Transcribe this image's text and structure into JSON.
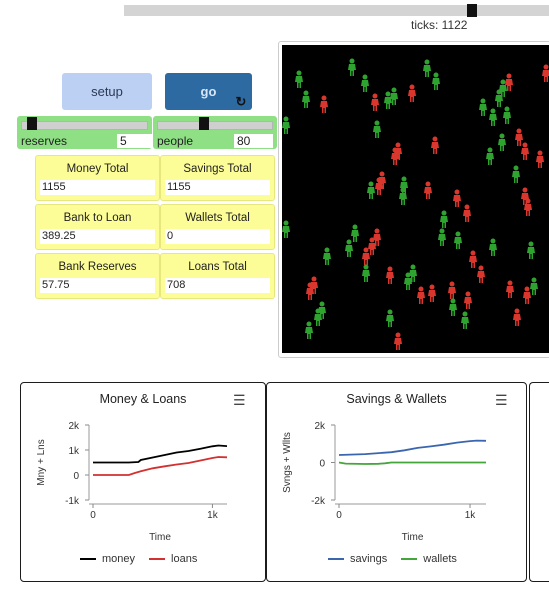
{
  "speed": {
    "ticks_label": "ticks: 1122"
  },
  "buttons": {
    "setup": "setup",
    "go": "go",
    "go_icon": "reload-icon"
  },
  "sliders": {
    "reserves": {
      "label": "reserves",
      "value": "5"
    },
    "people": {
      "label": "people",
      "value": "80"
    }
  },
  "monitors": [
    {
      "label": "Money Total",
      "value": "1155"
    },
    {
      "label": "Savings Total",
      "value": "1155"
    },
    {
      "label": "Bank to Loan",
      "value": "389.25"
    },
    {
      "label": "Wallets Total",
      "value": "0"
    },
    {
      "label": "Bank Reserves",
      "value": "57.75"
    },
    {
      "label": "Loans Total",
      "value": "708"
    }
  ],
  "colors": {
    "world_bg": "#000000",
    "agent_green": "#2fa32f",
    "agent_red": "#d9362d",
    "money": "#000000",
    "loans": "#d33030",
    "savings": "#3a66b0",
    "wallets": "#43a53a"
  },
  "plots": {
    "money_loans": {
      "title": "Money & Loans",
      "menu_icon": "hamburger-menu-icon",
      "ylabel": "Mny + Lns",
      "xlabel": "Time",
      "yticks": [
        "2k",
        "1k",
        "0",
        "-1k"
      ],
      "xticks": [
        "0",
        "1k"
      ],
      "legend": [
        "money",
        "loans"
      ]
    },
    "savings_wallets": {
      "title": "Savings & Wallets",
      "menu_icon": "hamburger-menu-icon",
      "ylabel": "Svngs + Wllts",
      "xlabel": "Time",
      "yticks": [
        "2k",
        "0",
        "-2k"
      ],
      "xticks": [
        "0",
        "1k"
      ],
      "legend": [
        "savings",
        "wallets"
      ]
    }
  },
  "chart_data": [
    {
      "type": "line",
      "title": "Money & Loans",
      "xlabel": "Time",
      "ylabel": "Mny + Lns",
      "xlim": [
        0,
        1122
      ],
      "ylim": [
        -1000,
        2000
      ],
      "series": [
        {
          "name": "money",
          "x": [
            0,
            300,
            380,
            400,
            500,
            600,
            700,
            800,
            900,
            1000,
            1050,
            1122
          ],
          "y": [
            500,
            500,
            520,
            600,
            700,
            800,
            900,
            960,
            1050,
            1150,
            1180,
            1155
          ]
        },
        {
          "name": "loans",
          "x": [
            0,
            300,
            350,
            400,
            500,
            600,
            700,
            800,
            900,
            1000,
            1050,
            1122
          ],
          "y": [
            0,
            0,
            80,
            150,
            270,
            350,
            420,
            480,
            580,
            680,
            720,
            708
          ]
        }
      ]
    },
    {
      "type": "line",
      "title": "Savings & Wallets",
      "xlabel": "Time",
      "ylabel": "Svngs + Wllts",
      "xlim": [
        0,
        1122
      ],
      "ylim": [
        -2000,
        2000
      ],
      "series": [
        {
          "name": "savings",
          "x": [
            0,
            200,
            400,
            500,
            600,
            700,
            800,
            900,
            1000,
            1050,
            1122
          ],
          "y": [
            400,
            450,
            550,
            650,
            780,
            860,
            950,
            1060,
            1140,
            1170,
            1155
          ]
        },
        {
          "name": "wallets",
          "x": [
            0,
            50,
            200,
            300,
            350,
            400,
            1122
          ],
          "y": [
            0,
            -60,
            -80,
            -70,
            -40,
            0,
            0
          ]
        }
      ]
    }
  ],
  "agents": [
    {
      "x": 17,
      "y": 34,
      "c": "g"
    },
    {
      "x": 24,
      "y": 54,
      "c": "g"
    },
    {
      "x": 70,
      "y": 22,
      "c": "g"
    },
    {
      "x": 83,
      "y": 38,
      "c": "g"
    },
    {
      "x": 145,
      "y": 23,
      "c": "g"
    },
    {
      "x": 154,
      "y": 36,
      "c": "g"
    },
    {
      "x": 264,
      "y": 28,
      "c": "r"
    },
    {
      "x": 42,
      "y": 59,
      "c": "r"
    },
    {
      "x": 93,
      "y": 57,
      "c": "r"
    },
    {
      "x": 106,
      "y": 55,
      "c": "g"
    },
    {
      "x": 112,
      "y": 51,
      "c": "g"
    },
    {
      "x": 130,
      "y": 48,
      "c": "r"
    },
    {
      "x": 201,
      "y": 62,
      "c": "g"
    },
    {
      "x": 217,
      "y": 53,
      "c": "g"
    },
    {
      "x": 221,
      "y": 43,
      "c": "g"
    },
    {
      "x": 227,
      "y": 37,
      "c": "r"
    },
    {
      "x": 211,
      "y": 72,
      "c": "g"
    },
    {
      "x": 225,
      "y": 70,
      "c": "g"
    },
    {
      "x": 4,
      "y": 80,
      "c": "g"
    },
    {
      "x": 95,
      "y": 84,
      "c": "g"
    },
    {
      "x": 153,
      "y": 100,
      "c": "r"
    },
    {
      "x": 113,
      "y": 111,
      "c": "r"
    },
    {
      "x": 116,
      "y": 106,
      "c": "r"
    },
    {
      "x": 208,
      "y": 111,
      "c": "g"
    },
    {
      "x": 220,
      "y": 97,
      "c": "g"
    },
    {
      "x": 237,
      "y": 92,
      "c": "r"
    },
    {
      "x": 243,
      "y": 106,
      "c": "r"
    },
    {
      "x": 258,
      "y": 114,
      "c": "r"
    },
    {
      "x": 234,
      "y": 129,
      "c": "g"
    },
    {
      "x": 100,
      "y": 135,
      "c": "r"
    },
    {
      "x": 97,
      "y": 141,
      "c": "r"
    },
    {
      "x": 89,
      "y": 145,
      "c": "g"
    },
    {
      "x": 122,
      "y": 140,
      "c": "g"
    },
    {
      "x": 121,
      "y": 151,
      "c": "g"
    },
    {
      "x": 146,
      "y": 145,
      "c": "r"
    },
    {
      "x": 175,
      "y": 153,
      "c": "r"
    },
    {
      "x": 243,
      "y": 151,
      "c": "r"
    },
    {
      "x": 246,
      "y": 162,
      "c": "r"
    },
    {
      "x": 4,
      "y": 184,
      "c": "g"
    },
    {
      "x": 73,
      "y": 188,
      "c": "g"
    },
    {
      "x": 162,
      "y": 174,
      "c": "g"
    },
    {
      "x": 185,
      "y": 168,
      "c": "r"
    },
    {
      "x": 160,
      "y": 192,
      "c": "g"
    },
    {
      "x": 176,
      "y": 195,
      "c": "g"
    },
    {
      "x": 95,
      "y": 192,
      "c": "r"
    },
    {
      "x": 90,
      "y": 201,
      "c": "r"
    },
    {
      "x": 67,
      "y": 203,
      "c": "g"
    },
    {
      "x": 84,
      "y": 211,
      "c": "r"
    },
    {
      "x": 211,
      "y": 202,
      "c": "g"
    },
    {
      "x": 249,
      "y": 205,
      "c": "g"
    },
    {
      "x": 45,
      "y": 211,
      "c": "g"
    },
    {
      "x": 191,
      "y": 214,
      "c": "r"
    },
    {
      "x": 84,
      "y": 228,
      "c": "g"
    },
    {
      "x": 108,
      "y": 230,
      "c": "r"
    },
    {
      "x": 131,
      "y": 228,
      "c": "g"
    },
    {
      "x": 126,
      "y": 236,
      "c": "g"
    },
    {
      "x": 199,
      "y": 229,
      "c": "r"
    },
    {
      "x": 32,
      "y": 240,
      "c": "r"
    },
    {
      "x": 28,
      "y": 246,
      "c": "r"
    },
    {
      "x": 139,
      "y": 250,
      "c": "r"
    },
    {
      "x": 150,
      "y": 248,
      "c": "r"
    },
    {
      "x": 170,
      "y": 245,
      "c": "r"
    },
    {
      "x": 228,
      "y": 244,
      "c": "r"
    },
    {
      "x": 245,
      "y": 250,
      "c": "r"
    },
    {
      "x": 252,
      "y": 241,
      "c": "g"
    },
    {
      "x": 40,
      "y": 265,
      "c": "g"
    },
    {
      "x": 36,
      "y": 272,
      "c": "g"
    },
    {
      "x": 108,
      "y": 273,
      "c": "g"
    },
    {
      "x": 183,
      "y": 275,
      "c": "g"
    },
    {
      "x": 235,
      "y": 272,
      "c": "r"
    },
    {
      "x": 27,
      "y": 285,
      "c": "g"
    },
    {
      "x": 116,
      "y": 296,
      "c": "r"
    },
    {
      "x": 186,
      "y": 255,
      "c": "r"
    },
    {
      "x": 171,
      "y": 262,
      "c": "g"
    }
  ]
}
